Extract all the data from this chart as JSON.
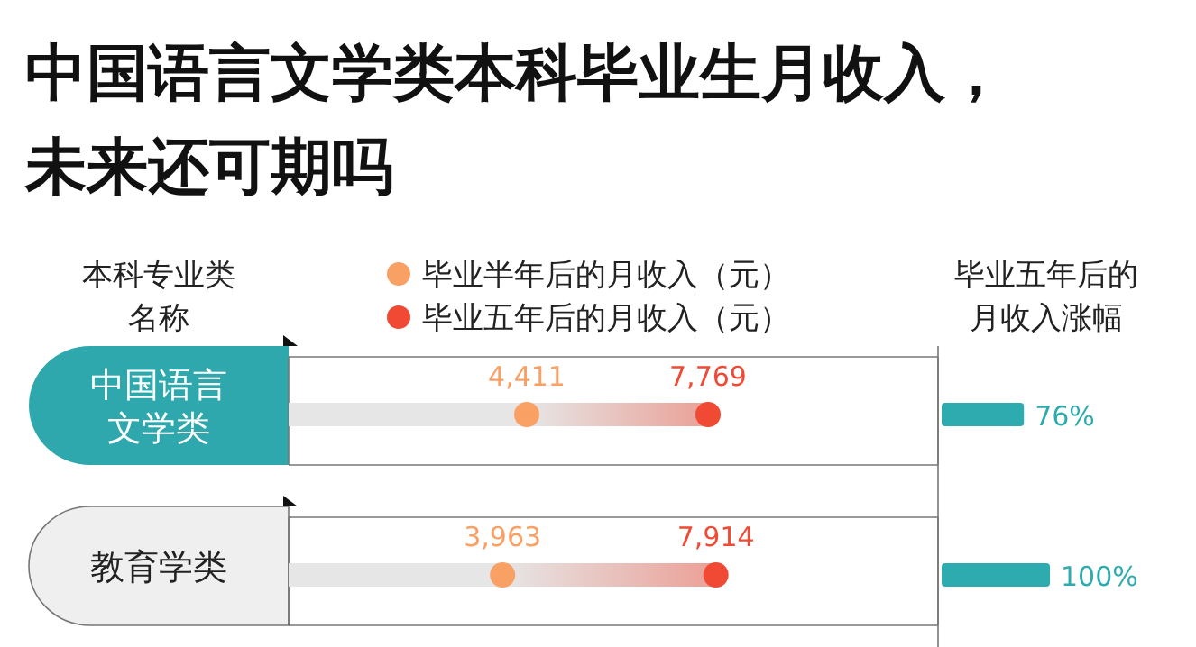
{
  "chart_data": [
    {
      "type": "scatter",
      "orientation": "horizontal",
      "title": "中国语言文学类本科毕业生月收入，未来还可期吗",
      "ylabel": "本科专业类名称",
      "categories": [
        "中国语言文学类",
        "教育学类"
      ],
      "legend": "top",
      "marker": "circle",
      "series": [
        {
          "name": "毕业半年后的月收入（元）",
          "color": "#f9a065",
          "values": [
            4411,
            3963
          ],
          "value_labels": [
            "4,411",
            "3,963"
          ]
        },
        {
          "name": "毕业五年后的月收入（元）",
          "color": "#f04a35",
          "values": [
            7769,
            7914
          ],
          "value_labels": [
            "7,769",
            "7,914"
          ]
        }
      ]
    },
    {
      "type": "bar",
      "orientation": "horizontal",
      "title": "毕业五年后的月收入涨幅",
      "categories": [
        null,
        null
      ],
      "color": "#2eabaf",
      "values": [
        76,
        100
      ],
      "value_labels": [
        "76%",
        "100%"
      ]
    }
  ]
}
